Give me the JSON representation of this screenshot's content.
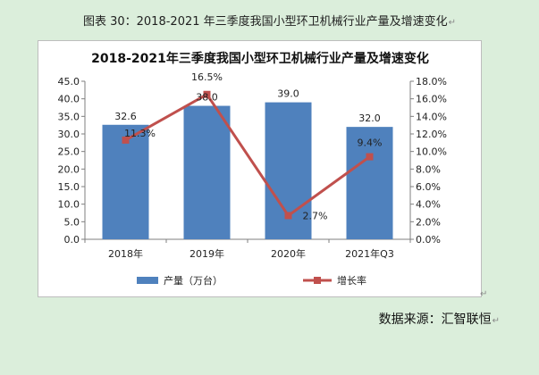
{
  "caption": {
    "text": "图表  30：2018-2021 年三季度我国小型环卫机械行业产量及增速变化",
    "paragraph_mark": "↵"
  },
  "chart_data": {
    "type": "bar",
    "title": "2018-2021年三季度我国小型环卫机械行业产量及增速变化",
    "categories": [
      "2018年",
      "2019年",
      "2020年",
      "2021年Q3"
    ],
    "series": [
      {
        "name": "产量（万台）",
        "type": "bar",
        "axis": "left",
        "color": "#4f81bd",
        "values": [
          32.6,
          38.0,
          39.0,
          32.0
        ],
        "labels": [
          "32.6",
          "38.0",
          "39.0",
          "32.0"
        ]
      },
      {
        "name": "增长率",
        "type": "line",
        "axis": "right",
        "color": "#c0504d",
        "values": [
          11.3,
          16.5,
          2.7,
          9.4
        ],
        "labels": [
          "11.3%",
          "16.5%",
          "2.7%",
          "9.4%"
        ]
      }
    ],
    "left_axis": {
      "min": 0,
      "max": 45,
      "ticks": [
        "0.0",
        "5.0",
        "10.0",
        "15.0",
        "20.0",
        "25.0",
        "30.0",
        "35.0",
        "40.0",
        "45.0"
      ]
    },
    "right_axis": {
      "min": 0,
      "max": 18,
      "ticks": [
        "0.0%",
        "2.0%",
        "4.0%",
        "6.0%",
        "8.0%",
        "10.0%",
        "12.0%",
        "14.0%",
        "16.0%",
        "18.0%"
      ]
    },
    "legend_position": "bottom",
    "grid": false
  },
  "frame_mark": "↵",
  "source": {
    "text": "数据来源：汇智联恒",
    "paragraph_mark": "↵"
  }
}
